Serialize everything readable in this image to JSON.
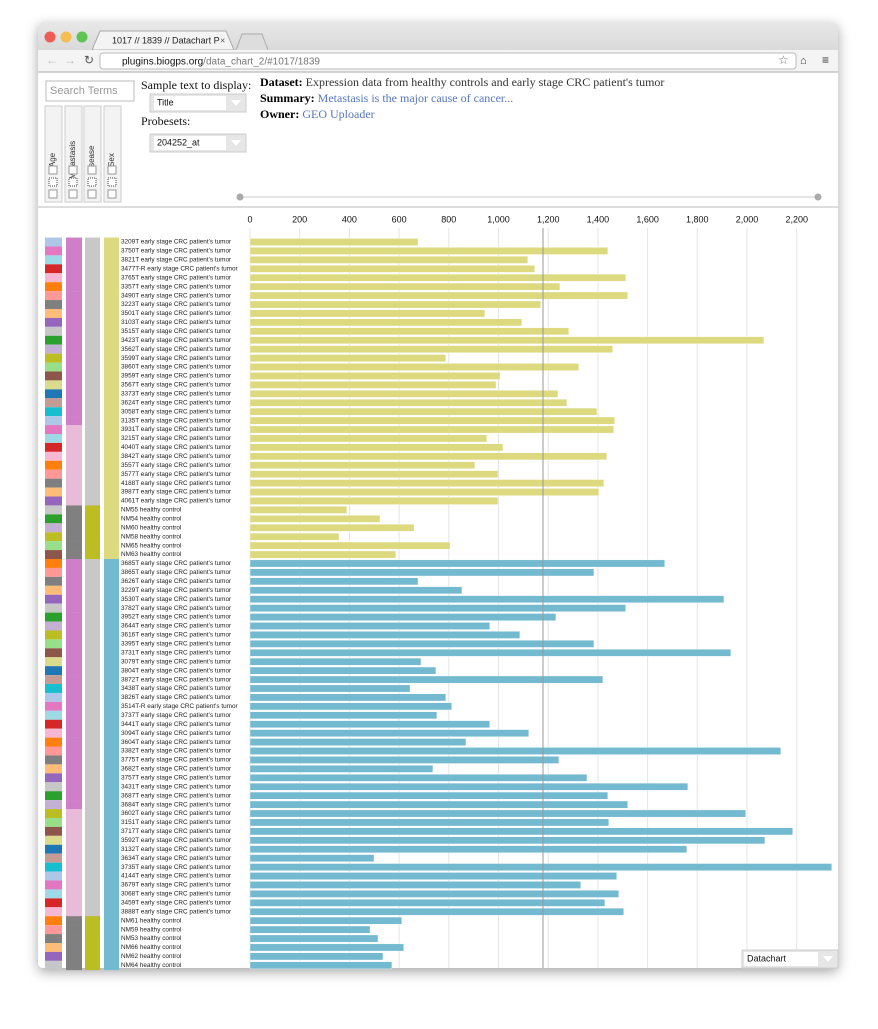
{
  "browser": {
    "tab_title": "1017 // 1839 // Datachart P",
    "url_host": "plugins.biogps.org",
    "url_path": "/data_chart_2/#1017/1839"
  },
  "controls": {
    "search_placeholder": "Search Terms",
    "sample_text_label": "Sample text to display:",
    "sample_text_value": "Title",
    "probesets_label": "Probesets:",
    "probeset_value": "204252_at",
    "columns": [
      "Age",
      "Metastasis",
      "Disease",
      "Sex"
    ],
    "view_select": "Datachart"
  },
  "info": {
    "dataset_label": "Dataset:",
    "dataset": "Expression data from healthy controls and early stage CRC patient's tumor",
    "summary_label": "Summary:",
    "summary": "Metastasis is the major cause of cancer...",
    "owner_label": "Owner:",
    "owner": "GEO Uploader"
  },
  "chart_data": {
    "type": "bar",
    "orientation": "horizontal",
    "xlim": [
      0,
      2342
    ],
    "xticks": [
      0,
      200,
      400,
      600,
      800,
      {
        "value": 1000,
        "label": "1,000"
      },
      {
        "value": 1200,
        "label": "1,200"
      },
      {
        "value": 1400,
        "label": "1,400"
      },
      {
        "value": 1600,
        "label": "1,600"
      },
      {
        "value": 1800,
        "label": "1,800"
      },
      {
        "value": 2000,
        "label": "2,000"
      },
      {
        "value": 2200,
        "label": "2,200"
      }
    ],
    "grid": true,
    "groups": [
      {
        "color": "#dcd97f",
        "categories": [
          "3209T early stage CRC patient's tumor",
          "3750T early stage CRC patient's tumor",
          "3821T early stage CRC patient's tumor",
          "3477T-R early stage CRC patient's tumor",
          "3765T early stage CRC patient's tumor",
          "3357T early stage CRC patient's tumor",
          "3490T early stage CRC patient's tumor",
          "3223T early stage CRC patient's tumor",
          "3501T early stage CRC patient's tumor",
          "3103T early stage CRC patient's tumor",
          "3515T early stage CRC patient's tumor",
          "3423T early stage CRC patient's tumor",
          "3562T early stage CRC patient's tumor",
          "3599T early stage CRC patient's tumor",
          "3860T early stage CRC patient's tumor",
          "3959T early stage CRC patient's tumor",
          "3567T early stage CRC patient's tumor",
          "3373T early stage CRC patient's tumor",
          "3624T early stage CRC patient's tumor",
          "3058T early stage CRC patient's tumor",
          "3135T early stage CRC patient's tumor",
          "3931T early stage CRC patient's tumor",
          "3215T early stage CRC patient's tumor",
          "4040T early stage CRC patient's tumor",
          "3842T early stage CRC patient's tumor",
          "3557T early stage CRC patient's tumor",
          "3577T early stage CRC patient's tumor",
          "4188T early stage CRC patient's tumor",
          "3987T early stage CRC patient's tumor",
          "4061T early stage CRC patient's tumor",
          "NM55 healthy control",
          "NM54 healthy control",
          "NM60 healthy control",
          "NM58 healthy control",
          "NM65 healthy control",
          "NM63 healthy control"
        ],
        "values": [
          676,
          1440,
          1118,
          1146,
          1512,
          1247,
          1520,
          1170,
          945,
          1094,
          1283,
          2068,
          1460,
          788,
          1323,
          1006,
          990,
          1239,
          1275,
          1396,
          1468,
          1464,
          953,
          1018,
          1436,
          905,
          998,
          1424,
          1404,
          998,
          390,
          523,
          660,
          358,
          805,
          587
        ]
      },
      {
        "color": "#73b9cf",
        "categories": [
          "3685T early stage CRC patient's tumor",
          "3865T early stage CRC patient's tumor",
          "3626T early stage CRC patient's tumor",
          "3229T early stage CRC patient's tumor",
          "3530T early stage CRC patient's tumor",
          "3782T early stage CRC patient's tumor",
          "3952T early stage CRC patient's tumor",
          "3644T early stage CRC patient's tumor",
          "3616T early stage CRC patient's tumor",
          "3395T early stage CRC patient's tumor",
          "3731T early stage CRC patient's tumor",
          "3079T early stage CRC patient's tumor",
          "3804T early stage CRC patient's tumor",
          "3872T early stage CRC patient's tumor",
          "3438T early stage CRC patient's tumor",
          "3826T early stage CRC patient's tumor",
          "3514T-R early stage CRC patient's tumor",
          "3737T early stage CRC patient's tumor",
          "3441T early stage CRC patient's tumor",
          "3094T early stage CRC patient's tumor",
          "3604T early stage CRC patient's tumor",
          "3382T early stage CRC patient's tumor",
          "3775T early stage CRC patient's tumor",
          "3682T early stage CRC patient's tumor",
          "3757T early stage CRC patient's tumor",
          "3431T early stage CRC patient's tumor",
          "3687T early stage CRC patient's tumor",
          "3684T early stage CRC patient's tumor",
          "3602T early stage CRC patient's tumor",
          "3151T early stage CRC patient's tumor",
          "3717T early stage CRC patient's tumor",
          "3592T early stage CRC patient's tumor",
          "3132T early stage CRC patient's tumor",
          "3634T early stage CRC patient's tumor",
          "3735T early stage CRC patient's tumor",
          "4144T early stage CRC patient's tumor",
          "3679T early stage CRC patient's tumor",
          "3068T early stage CRC patient's tumor",
          "3459T early stage CRC patient's tumor",
          "3888T early stage CRC patient's tumor",
          "NM61 healthy control",
          "NM59 healthy control",
          "NM53 healthy control",
          "NM66 healthy control",
          "NM62 healthy control",
          "NM64 healthy control"
        ],
        "values": [
          1669,
          1384,
          676,
          853,
          1907,
          1512,
          1231,
          965,
          1086,
          1384,
          1935,
          688,
          748,
          1420,
          644,
          788,
          812,
          752,
          965,
          1122,
          869,
          2136,
          1243,
          736,
          1356,
          1762,
          1440,
          1520,
          1995,
          1444,
          2184,
          2072,
          1758,
          499,
          2341,
          1476,
          1331,
          1484,
          1428,
          1504,
          611,
          483,
          515,
          619,
          535,
          571
        ]
      }
    ]
  }
}
